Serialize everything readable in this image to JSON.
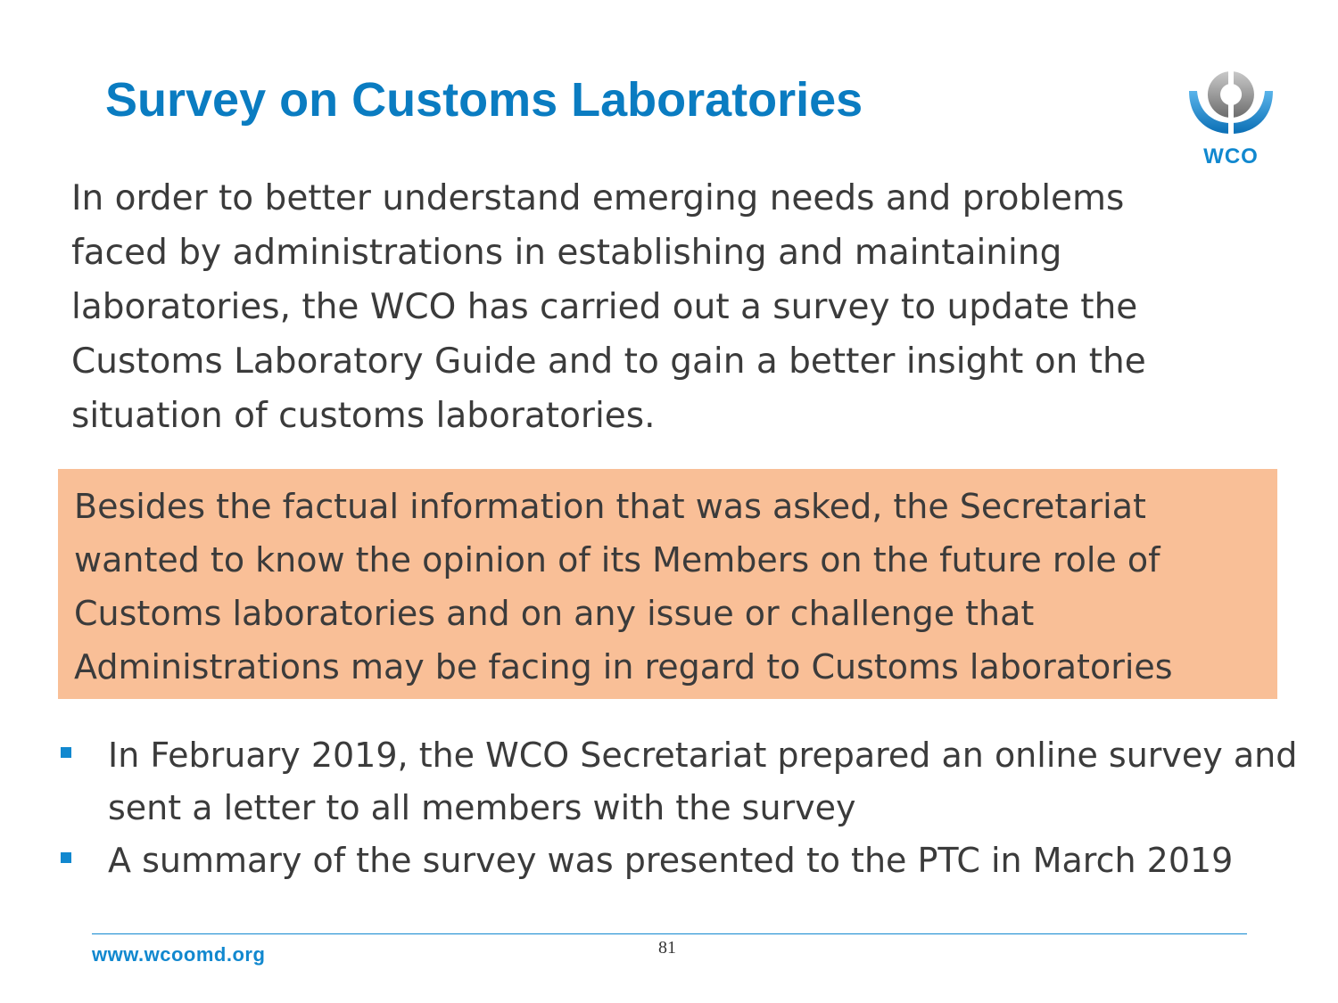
{
  "slide": {
    "title": "Survey on Customs Laboratories",
    "logo_text": "WCO",
    "intro": "In order to better understand emerging needs and problems faced by administrations in establishing and maintaining laboratories, the WCO has carried out a survey to update the Customs Laboratory Guide and to gain a better insight on the situation of customs laboratories.",
    "highlight": "Besides the factual information that was asked, the Secretariat wanted to know the opinion of its Members on the future role of Customs laboratories and on any issue or challenge that Administrations may be facing in regard to Customs laboratories",
    "bullets": [
      "In February 2019, the WCO Secretariat prepared an online survey and sent a letter to all members with the survey",
      "A summary of the survey was presented to the PTC in March 2019"
    ]
  },
  "footer": {
    "url": "www.wcoomd.org",
    "page_number": "81"
  },
  "colors": {
    "accent": "#0a7cc1",
    "highlight_bg": "#f9bf97",
    "body_text": "#3b3b3b"
  }
}
